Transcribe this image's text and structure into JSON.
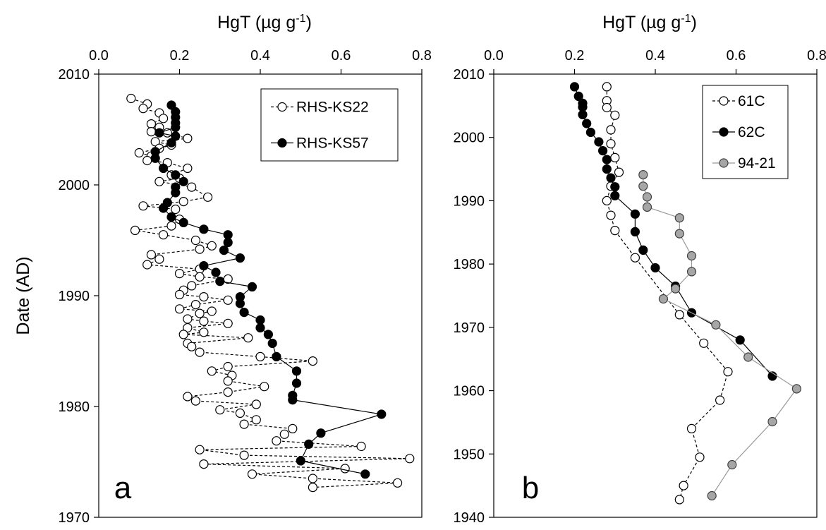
{
  "chart_data": [
    {
      "type": "scatter",
      "panel_label": "a",
      "xlabel_main": "HgT (µg g",
      "xlabel_sup": "-1",
      "xlabel_end": ")",
      "ylabel": "Date (AD)",
      "xlim": [
        0,
        0.8
      ],
      "ylim": [
        1970,
        2010
      ],
      "x_ticks": [
        0.0,
        0.2,
        0.4,
        0.6,
        0.8
      ],
      "x_tick_labels": [
        "0.0",
        "0.2",
        "0.4",
        "0.6",
        "0.8"
      ],
      "y_ticks": [
        1970,
        1980,
        1990,
        2000,
        2010
      ],
      "y_tick_labels": [
        "1970",
        "1980",
        "1990",
        "2000",
        "2010"
      ],
      "x_axis_position": "top",
      "grid": false,
      "legend_position": "top-right",
      "series": [
        {
          "name": "RHS-KS22",
          "marker": "open-circle",
          "line": "dashed",
          "color": "#000000",
          "points": [
            [
              0.08,
              2007.8
            ],
            [
              0.12,
              2007.3
            ],
            [
              0.11,
              2006.9
            ],
            [
              0.15,
              2006.5
            ],
            [
              0.16,
              2006.0
            ],
            [
              0.13,
              2005.5
            ],
            [
              0.15,
              2005.2
            ],
            [
              0.13,
              2004.8
            ],
            [
              0.17,
              2004.7
            ],
            [
              0.22,
              2004.2
            ],
            [
              0.14,
              2003.9
            ],
            [
              0.18,
              2003.6
            ],
            [
              0.15,
              2003.3
            ],
            [
              0.1,
              2002.9
            ],
            [
              0.13,
              2002.6
            ],
            [
              0.12,
              2002.2
            ],
            [
              0.17,
              2002.0
            ],
            [
              0.22,
              2001.5
            ],
            [
              0.18,
              2000.9
            ],
            [
              0.2,
              2000.6
            ],
            [
              0.15,
              2000.3
            ],
            [
              0.23,
              1999.8
            ],
            [
              0.27,
              1998.9
            ],
            [
              0.21,
              1998.5
            ],
            [
              0.11,
              1998.1
            ],
            [
              0.19,
              1997.8
            ],
            [
              0.2,
              1996.9
            ],
            [
              0.18,
              1996.3
            ],
            [
              0.09,
              1995.9
            ],
            [
              0.16,
              1995.5
            ],
            [
              0.24,
              1995.0
            ],
            [
              0.28,
              1994.5
            ],
            [
              0.25,
              1994.2
            ],
            [
              0.13,
              1993.7
            ],
            [
              0.15,
              1993.3
            ],
            [
              0.12,
              1992.8
            ],
            [
              0.25,
              1992.4
            ],
            [
              0.2,
              1992.0
            ],
            [
              0.25,
              1991.7
            ],
            [
              0.32,
              1991.5
            ],
            [
              0.23,
              1990.9
            ],
            [
              0.21,
              1990.5
            ],
            [
              0.2,
              1990.1
            ],
            [
              0.26,
              1989.9
            ],
            [
              0.32,
              1989.6
            ],
            [
              0.24,
              1989.2
            ],
            [
              0.2,
              1988.8
            ],
            [
              0.28,
              1988.6
            ],
            [
              0.25,
              1988.4
            ],
            [
              0.22,
              1987.9
            ],
            [
              0.26,
              1987.7
            ],
            [
              0.32,
              1987.5
            ],
            [
              0.22,
              1987.1
            ],
            [
              0.26,
              1986.7
            ],
            [
              0.21,
              1986.5
            ],
            [
              0.37,
              1986.2
            ],
            [
              0.22,
              1985.7
            ],
            [
              0.23,
              1985.4
            ],
            [
              0.25,
              1984.9
            ],
            [
              0.4,
              1984.5
            ],
            [
              0.53,
              1984.1
            ],
            [
              0.32,
              1983.6
            ],
            [
              0.28,
              1983.2
            ],
            [
              0.33,
              1982.8
            ],
            [
              0.32,
              1982.3
            ],
            [
              0.41,
              1981.8
            ],
            [
              0.32,
              1981.3
            ],
            [
              0.22,
              1980.9
            ],
            [
              0.24,
              1980.5
            ],
            [
              0.39,
              1980.2
            ],
            [
              0.3,
              1979.7
            ],
            [
              0.35,
              1979.4
            ],
            [
              0.39,
              1978.8
            ],
            [
              0.36,
              1978.4
            ],
            [
              0.48,
              1978.0
            ],
            [
              0.46,
              1977.5
            ],
            [
              0.44,
              1976.9
            ],
            [
              0.65,
              1976.4
            ],
            [
              0.25,
              1976.1
            ],
            [
              0.36,
              1975.6
            ],
            [
              0.77,
              1975.3
            ],
            [
              0.26,
              1974.8
            ],
            [
              0.61,
              1974.4
            ],
            [
              0.38,
              1973.9
            ],
            [
              0.53,
              1973.5
            ],
            [
              0.74,
              1973.1
            ],
            [
              0.53,
              1972.7
            ]
          ]
        },
        {
          "name": "RHS-KS57",
          "marker": "filled-circle",
          "line": "solid",
          "color": "#000000",
          "points": [
            [
              0.18,
              2007.2
            ],
            [
              0.19,
              2006.6
            ],
            [
              0.19,
              2006.1
            ],
            [
              0.19,
              2005.6
            ],
            [
              0.19,
              2005.2
            ],
            [
              0.15,
              2004.7
            ],
            [
              0.19,
              2004.4
            ],
            [
              0.18,
              2003.8
            ],
            [
              0.14,
              2003.0
            ],
            [
              0.14,
              2002.4
            ],
            [
              0.16,
              2001.5
            ],
            [
              0.19,
              2000.9
            ],
            [
              0.21,
              2000.3
            ],
            [
              0.19,
              1999.8
            ],
            [
              0.19,
              1999.3
            ],
            [
              0.17,
              1998.4
            ],
            [
              0.16,
              1997.9
            ],
            [
              0.18,
              1997.1
            ],
            [
              0.21,
              1996.6
            ],
            [
              0.26,
              1996.0
            ],
            [
              0.32,
              1995.5
            ],
            [
              0.32,
              1994.8
            ],
            [
              0.31,
              1994.1
            ],
            [
              0.35,
              1993.4
            ],
            [
              0.26,
              1992.7
            ],
            [
              0.29,
              1992.1
            ],
            [
              0.3,
              1991.3
            ],
            [
              0.38,
              1990.8
            ],
            [
              0.35,
              1989.9
            ],
            [
              0.35,
              1989.3
            ],
            [
              0.36,
              1988.5
            ],
            [
              0.4,
              1987.8
            ],
            [
              0.4,
              1987.1
            ],
            [
              0.42,
              1986.5
            ],
            [
              0.43,
              1985.7
            ],
            [
              0.44,
              1984.5
            ],
            [
              0.49,
              1983.2
            ],
            [
              0.49,
              1982.1
            ],
            [
              0.48,
              1981.0
            ],
            [
              0.48,
              1980.6
            ],
            [
              0.7,
              1979.3
            ],
            [
              0.55,
              1977.6
            ],
            [
              0.52,
              1976.6
            ],
            [
              0.5,
              1975.1
            ],
            [
              0.66,
              1973.9
            ]
          ]
        }
      ]
    },
    {
      "type": "scatter",
      "panel_label": "b",
      "xlabel_main": "HgT (µg g",
      "xlabel_sup": "-1",
      "xlabel_end": ")",
      "ylabel": "",
      "xlim": [
        0,
        0.8
      ],
      "ylim": [
        1940,
        2010
      ],
      "x_ticks": [
        0.0,
        0.2,
        0.4,
        0.6,
        0.8
      ],
      "x_tick_labels": [
        "0.0",
        "0.2",
        "0.4",
        "0.6",
        "0.8"
      ],
      "y_ticks": [
        1940,
        1950,
        1960,
        1970,
        1980,
        1990,
        2000,
        2010
      ],
      "y_tick_labels": [
        "1940",
        "1950",
        "1960",
        "1970",
        "1980",
        "1990",
        "2000",
        "2010"
      ],
      "x_axis_position": "top",
      "grid": false,
      "legend_position": "top-right",
      "series": [
        {
          "name": "61C",
          "marker": "open-circle",
          "line": "dashed",
          "color": "#000000",
          "points": [
            [
              0.28,
              2008.0
            ],
            [
              0.28,
              2005.8
            ],
            [
              0.28,
              2004.7
            ],
            [
              0.3,
              2003.5
            ],
            [
              0.29,
              2001.2
            ],
            [
              0.29,
              1999.0
            ],
            [
              0.3,
              1996.8
            ],
            [
              0.31,
              1994.5
            ],
            [
              0.29,
              1992.3
            ],
            [
              0.28,
              1990.0
            ],
            [
              0.29,
              1987.7
            ],
            [
              0.3,
              1985.3
            ],
            [
              0.35,
              1981.0
            ],
            [
              0.46,
              1972.0
            ],
            [
              0.52,
              1967.5
            ],
            [
              0.58,
              1963.0
            ],
            [
              0.56,
              1958.5
            ],
            [
              0.49,
              1954.0
            ],
            [
              0.51,
              1949.5
            ],
            [
              0.47,
              1945.0
            ],
            [
              0.46,
              1942.8
            ]
          ]
        },
        {
          "name": "62C",
          "marker": "filled-circle",
          "line": "solid",
          "color": "#000000",
          "points": [
            [
              0.2,
              2008.0
            ],
            [
              0.21,
              2006.5
            ],
            [
              0.22,
              2005.4
            ],
            [
              0.22,
              2004.8
            ],
            [
              0.22,
              2003.6
            ],
            [
              0.23,
              2002.2
            ],
            [
              0.24,
              2000.8
            ],
            [
              0.26,
              1999.3
            ],
            [
              0.27,
              1997.9
            ],
            [
              0.28,
              1996.5
            ],
            [
              0.28,
              1995.0
            ],
            [
              0.29,
              1993.6
            ],
            [
              0.3,
              1992.2
            ],
            [
              0.3,
              1990.8
            ],
            [
              0.35,
              1987.9
            ],
            [
              0.35,
              1985.1
            ],
            [
              0.37,
              1982.2
            ],
            [
              0.4,
              1979.4
            ],
            [
              0.45,
              1976.5
            ],
            [
              0.49,
              1972.3
            ],
            [
              0.61,
              1968.0
            ],
            [
              0.69,
              1962.3
            ]
          ]
        },
        {
          "name": "94-21",
          "marker": "gray-circle",
          "line": "solid",
          "color": "#999999",
          "points": [
            [
              0.37,
              1994.1
            ],
            [
              0.37,
              1992.3
            ],
            [
              0.38,
              1990.6
            ],
            [
              0.38,
              1989.0
            ],
            [
              0.46,
              1987.3
            ],
            [
              0.46,
              1984.8
            ],
            [
              0.49,
              1981.3
            ],
            [
              0.49,
              1978.8
            ],
            [
              0.45,
              1976.1
            ],
            [
              0.42,
              1974.5
            ],
            [
              0.55,
              1970.4
            ],
            [
              0.63,
              1965.3
            ],
            [
              0.75,
              1960.3
            ],
            [
              0.69,
              1955.1
            ],
            [
              0.59,
              1948.3
            ],
            [
              0.54,
              1943.4
            ]
          ]
        }
      ]
    }
  ]
}
